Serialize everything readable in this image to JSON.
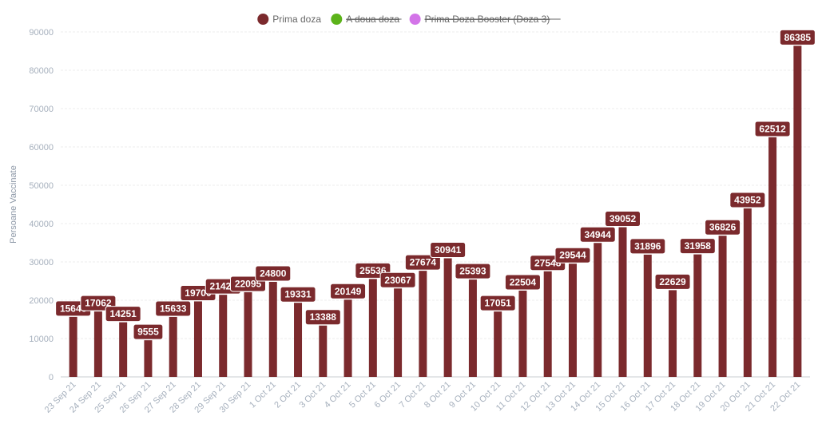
{
  "chart_data": {
    "type": "bar",
    "ylabel": "Persoane Vaccinate",
    "ylim": [
      0,
      90000
    ],
    "yticks": [
      0,
      10000,
      20000,
      30000,
      40000,
      50000,
      60000,
      70000,
      80000,
      90000
    ],
    "grid": true,
    "legend_position": "top-center",
    "legend": [
      {
        "name": "Prima doza",
        "color": "#7b2a2d",
        "active": true
      },
      {
        "name": "A doua doza",
        "color": "#5cb31a",
        "active": false
      },
      {
        "name": "Prima Doza Booster (Doza 3)",
        "color": "#d374e8",
        "active": false
      }
    ],
    "categories": [
      "23 Sep 21",
      "24 Sep 21",
      "25 Sep 21",
      "26 Sep 21",
      "27 Sep 21",
      "28 Sep 21",
      "29 Sep 21",
      "30 Sep 21",
      "1 Oct 21",
      "2 Oct 21",
      "3 Oct 21",
      "4 Oct 21",
      "5 Oct 21",
      "6 Oct 21",
      "7 Oct 21",
      "8 Oct 21",
      "9 Oct 21",
      "10 Oct 21",
      "11 Oct 21",
      "12 Oct 21",
      "13 Oct 21",
      "14 Oct 21",
      "15 Oct 21",
      "16 Oct 21",
      "17 Oct 21",
      "18 Oct 21",
      "19 Oct 21",
      "20 Oct 21",
      "21 Oct 21",
      "22 Oct 21"
    ],
    "series": [
      {
        "name": "Prima doza",
        "color": "#7b2a2d",
        "values": [
          15646,
          17062,
          14251,
          9555,
          15633,
          19700,
          21420,
          22095,
          24800,
          19331,
          13388,
          20149,
          25536,
          23067,
          27674,
          30941,
          25393,
          17051,
          22504,
          27548,
          29544,
          34944,
          39052,
          31896,
          22629,
          31958,
          36826,
          43952,
          62512,
          86385
        ]
      }
    ]
  }
}
